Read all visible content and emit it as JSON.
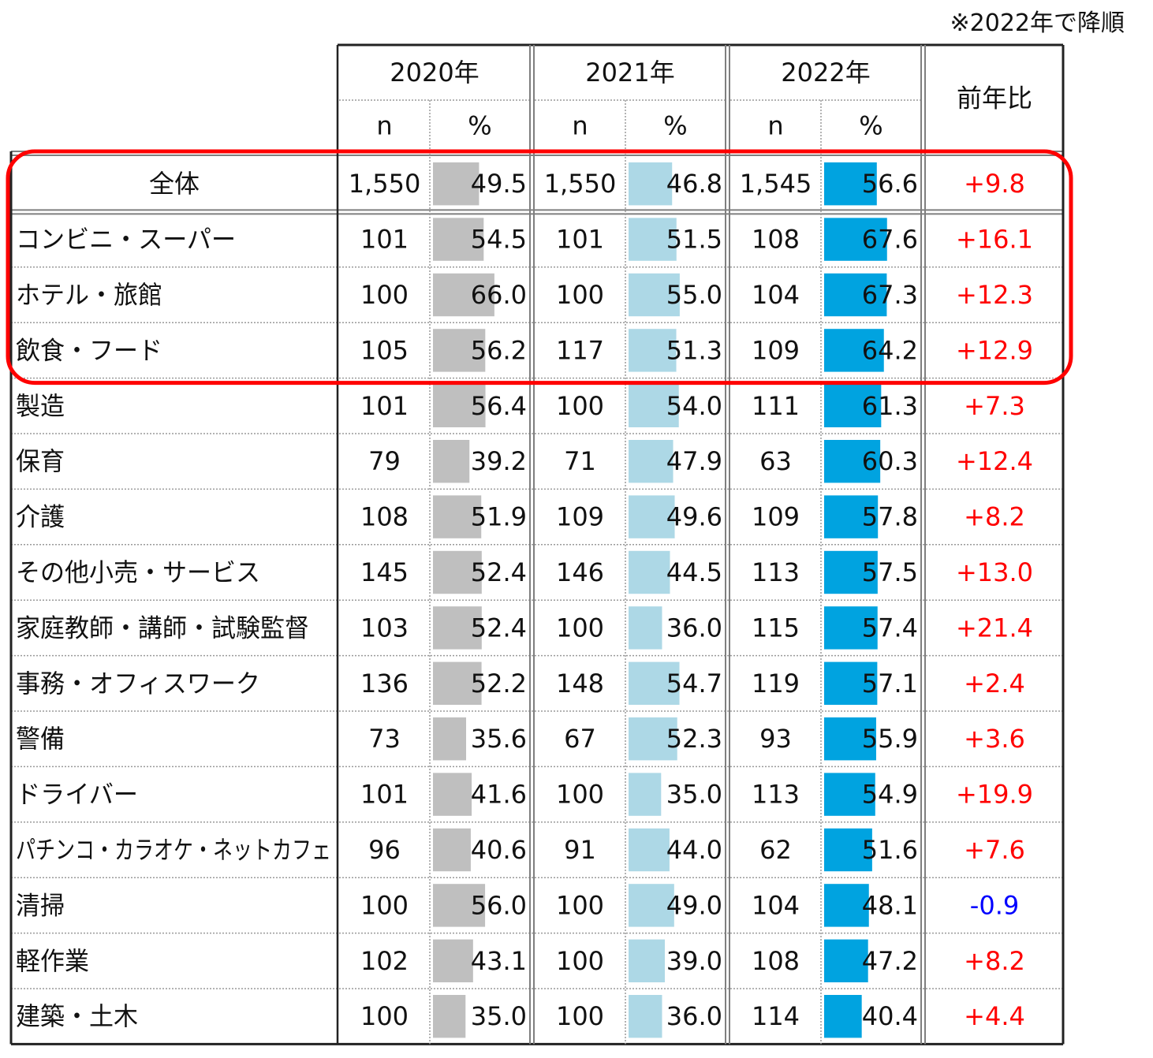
{
  "note": "※2022年で降順",
  "header": {
    "years": [
      "2020年",
      "2021年",
      "2022年"
    ],
    "n_label": "n",
    "pct_label": "%",
    "change_label": "前年比"
  },
  "colors": {
    "bar_2020": "#bfbfbf",
    "bar_2021": "#add8e6",
    "bar_2022": "#00a3e0",
    "positive": "#ff0000",
    "negative": "#0000ff",
    "highlight": "#ff0000",
    "grid": "#7f7f7f"
  },
  "chart_data": {
    "type": "table",
    "title": "",
    "columns": [
      "2020年 n",
      "2020年 %",
      "2021年 n",
      "2021年 %",
      "2022年 n",
      "2022年 %",
      "前年比"
    ],
    "bar_scale_max": 100,
    "sort_note": "※2022年で降順",
    "highlighted_rows": [
      "全体",
      "コンビニ・スーパー",
      "ホテル・旅館",
      "飲食・フード"
    ],
    "rows": [
      {
        "label": "全体",
        "n2020": "1,550",
        "p2020": 49.5,
        "n2021": "1,550",
        "p2021": 46.8,
        "n2022": "1,545",
        "p2022": 56.6,
        "change": "+9.8"
      },
      {
        "label": "コンビニ・スーパー",
        "n2020": "101",
        "p2020": 54.5,
        "n2021": "101",
        "p2021": 51.5,
        "n2022": "108",
        "p2022": 67.6,
        "change": "+16.1"
      },
      {
        "label": "ホテル・旅館",
        "n2020": "100",
        "p2020": 66.0,
        "n2021": "100",
        "p2021": 55.0,
        "n2022": "104",
        "p2022": 67.3,
        "change": "+12.3"
      },
      {
        "label": "飲食・フード",
        "n2020": "105",
        "p2020": 56.2,
        "n2021": "117",
        "p2021": 51.3,
        "n2022": "109",
        "p2022": 64.2,
        "change": "+12.9"
      },
      {
        "label": "製造",
        "n2020": "101",
        "p2020": 56.4,
        "n2021": "100",
        "p2021": 54.0,
        "n2022": "111",
        "p2022": 61.3,
        "change": "+7.3"
      },
      {
        "label": "保育",
        "n2020": "79",
        "p2020": 39.2,
        "n2021": "71",
        "p2021": 47.9,
        "n2022": "63",
        "p2022": 60.3,
        "change": "+12.4"
      },
      {
        "label": "介護",
        "n2020": "108",
        "p2020": 51.9,
        "n2021": "109",
        "p2021": 49.6,
        "n2022": "109",
        "p2022": 57.8,
        "change": "+8.2"
      },
      {
        "label": "その他小売・サービス",
        "n2020": "145",
        "p2020": 52.4,
        "n2021": "146",
        "p2021": 44.5,
        "n2022": "113",
        "p2022": 57.5,
        "change": "+13.0"
      },
      {
        "label": "家庭教師・講師・試験監督",
        "n2020": "103",
        "p2020": 52.4,
        "n2021": "100",
        "p2021": 36.0,
        "n2022": "115",
        "p2022": 57.4,
        "change": "+21.4"
      },
      {
        "label": "事務・オフィスワーク",
        "n2020": "136",
        "p2020": 52.2,
        "n2021": "148",
        "p2021": 54.7,
        "n2022": "119",
        "p2022": 57.1,
        "change": "+2.4"
      },
      {
        "label": "警備",
        "n2020": "73",
        "p2020": 35.6,
        "n2021": "67",
        "p2021": 52.3,
        "n2022": "93",
        "p2022": 55.9,
        "change": "+3.6"
      },
      {
        "label": "ドライバー",
        "n2020": "101",
        "p2020": 41.6,
        "n2021": "100",
        "p2021": 35.0,
        "n2022": "113",
        "p2022": 54.9,
        "change": "+19.9"
      },
      {
        "label": "パチンコ・カラオケ・ネットカフェ",
        "n2020": "96",
        "p2020": 40.6,
        "n2021": "91",
        "p2021": 44.0,
        "n2022": "62",
        "p2022": 51.6,
        "change": "+7.6"
      },
      {
        "label": "清掃",
        "n2020": "100",
        "p2020": 56.0,
        "n2021": "100",
        "p2021": 49.0,
        "n2022": "104",
        "p2022": 48.1,
        "change": "-0.9"
      },
      {
        "label": "軽作業",
        "n2020": "102",
        "p2020": 43.1,
        "n2021": "100",
        "p2021": 39.0,
        "n2022": "108",
        "p2022": 47.2,
        "change": "+8.2"
      },
      {
        "label": "建築・土木",
        "n2020": "100",
        "p2020": 35.0,
        "n2021": "100",
        "p2021": 36.0,
        "n2022": "114",
        "p2022": 40.4,
        "change": "+4.4"
      }
    ]
  }
}
